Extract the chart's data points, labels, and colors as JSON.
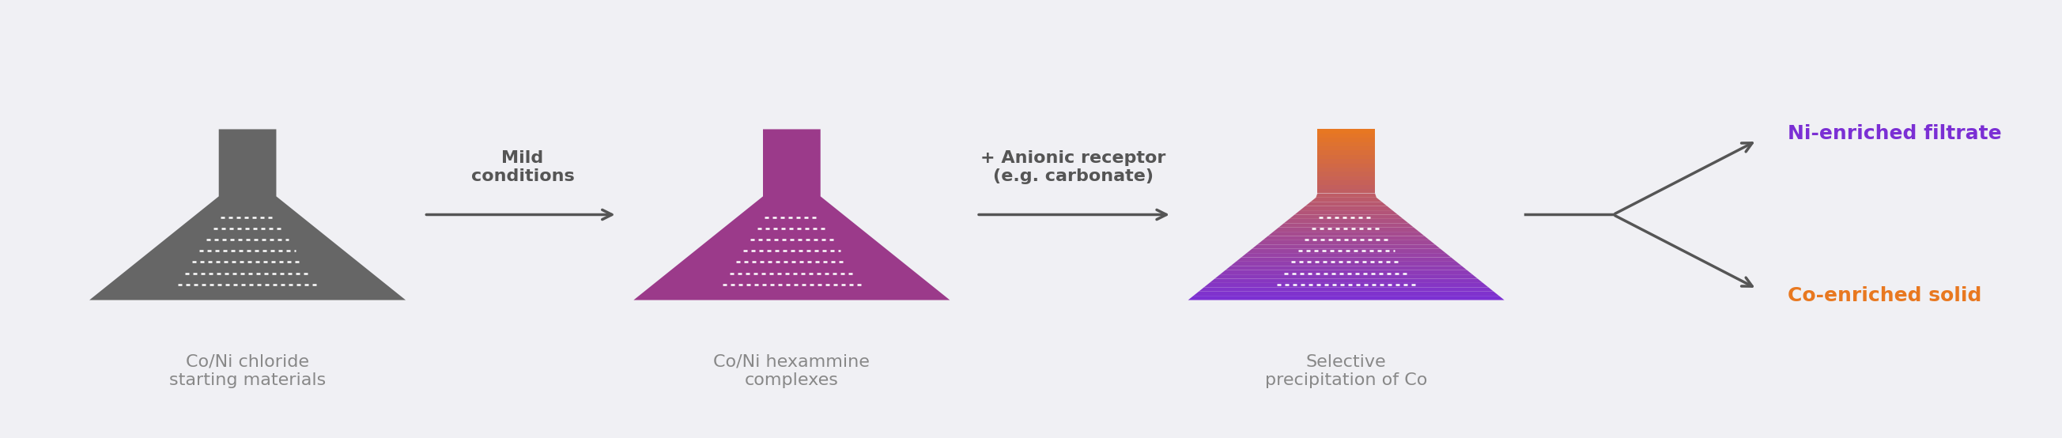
{
  "bg_color": "#f0f0f4",
  "arrow_color": "#555555",
  "flask1_color": "#666666",
  "flask2_color_top": "#9b3a8a",
  "flask2_color_bottom": "#9b3a8a",
  "flask3_color_top": "#7b2fd4",
  "flask3_color_bottom": "#e87820",
  "label1": "Co/Ni chloride\nstarting materials",
  "label2": "Co/Ni hexammine\ncomplexes",
  "label3": "Selective\nprecipitation of Co",
  "arrow1_label": "Mild\nconditions",
  "arrow2_label": "+ Anionic receptor\n(e.g. carbonate)",
  "ni_label": "Ni-enriched filtrate",
  "co_label": "Co-enriched solid",
  "ni_color": "#7b2fd4",
  "co_color": "#e87820",
  "label_color": "#888888",
  "arrow_label_color": "#555555",
  "title_fontsize": 18,
  "label_fontsize": 16,
  "arrow_fontsize": 16
}
